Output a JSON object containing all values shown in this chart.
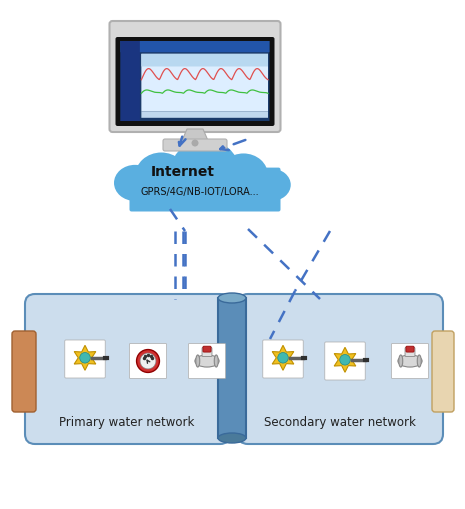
{
  "bg_color": "#ffffff",
  "cloud_color": "#7ec8e3",
  "cloud_color2": "#5aafe0",
  "cloud_text1": "Internet",
  "cloud_text2": "GPRS/4G/NB-IOT/LORA...",
  "primary_label": "Primary water network",
  "secondary_label": "Secondary water network",
  "arrow_color": "#4472c4",
  "box_fill": "#ccdded",
  "box_stroke": "#5b8db8",
  "pipe_color": "#5b8db8",
  "pipe_dark": "#3a6a9a",
  "left_rect_color": "#cc8855",
  "right_rect_color": "#e8d5b0",
  "monitor_frame": "#d8d8d8",
  "monitor_bezel": "#111111",
  "monitor_screen": "#1a3a6a",
  "screen_content_bg": "#1e4080",
  "sidebar_color": "#1a3580",
  "chart_bg": "#e8f4ff",
  "line_red": "#e05050",
  "line_green": "#40c040",
  "stand_color": "#c8c8c8",
  "base_color": "#d0d0d0"
}
